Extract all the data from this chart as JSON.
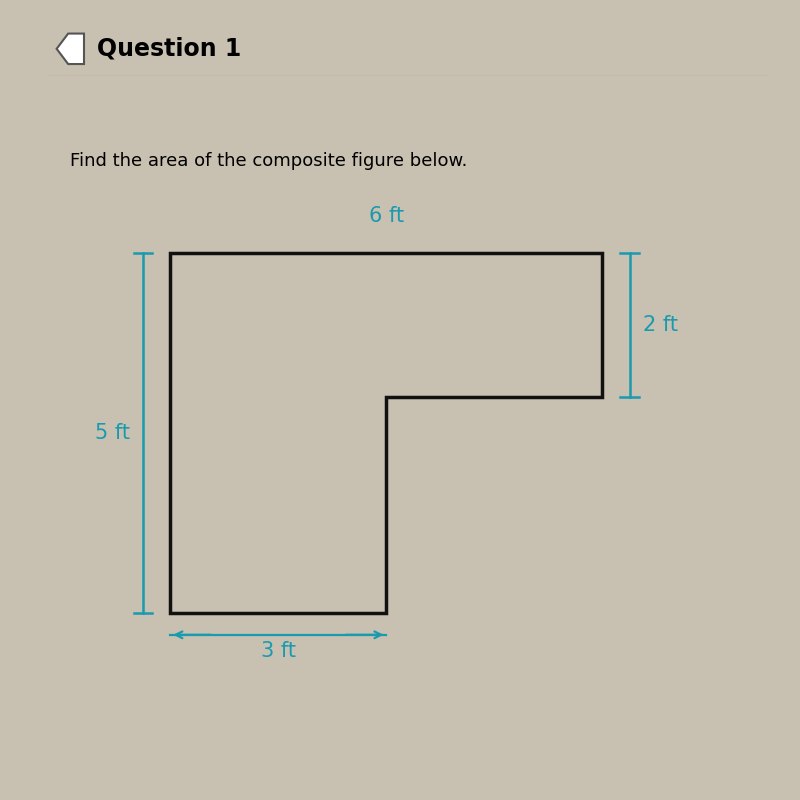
{
  "title": "Question 1",
  "subtitle": "Find the area of the composite figure below.",
  "bg_color": "#c8c0b0",
  "header_bg": "#d8d0c0",
  "shape_fill": "#c8c0b0",
  "shape_edge": "#111111",
  "dim_color": "#1a9aaf",
  "shape_lw": 2.5,
  "shape_x": [
    0,
    3,
    3,
    6,
    6,
    0,
    0
  ],
  "shape_y": [
    0,
    0,
    3,
    3,
    5,
    5,
    0
  ],
  "label_top": "6 ft",
  "label_left": "5 ft",
  "label_right": "2 ft",
  "label_bot": "3 ft",
  "title_fontsize": 17,
  "subtitle_fontsize": 13,
  "dim_fontsize": 15
}
